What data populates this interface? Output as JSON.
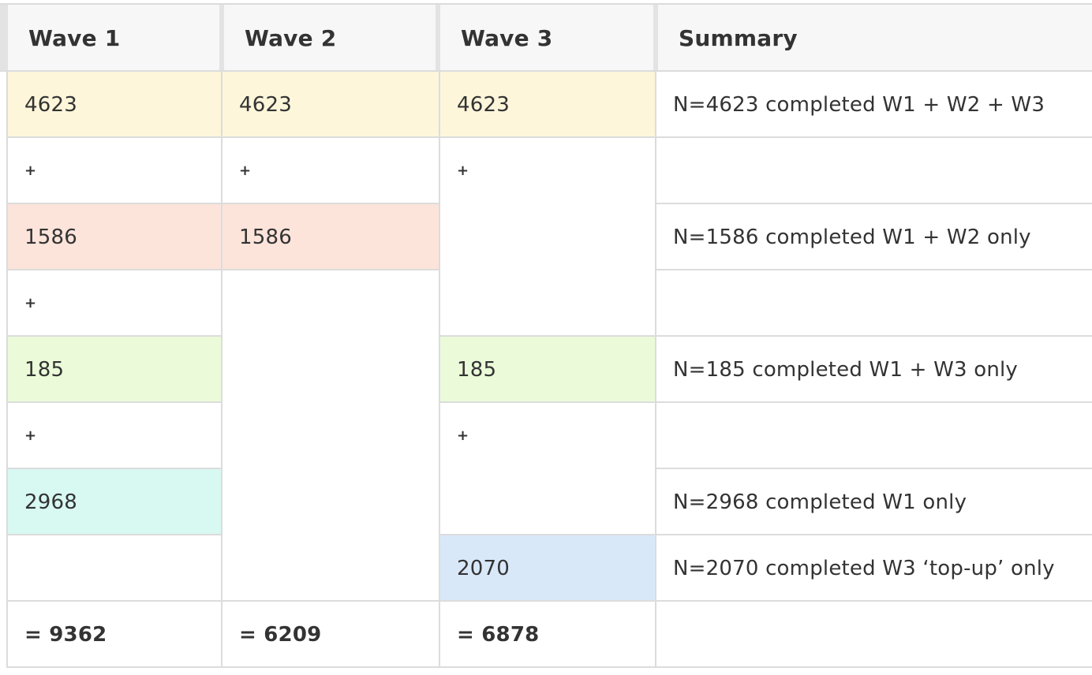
{
  "headers": [
    "Wave 1",
    "Wave 2",
    "Wave 3",
    "Summary"
  ],
  "rows": {
    "r1": {
      "w1": "4623",
      "w2": "4623",
      "w3": "4623",
      "summary": "N=4623 completed W1 + W2 + W3"
    },
    "r2": {
      "w1": "+",
      "w2": "+",
      "w3": "+"
    },
    "r3": {
      "w1": "1586",
      "w2": "1586",
      "summary": "N=1586 completed W1 + W2 only"
    },
    "r4": {
      "w1": "+"
    },
    "r5": {
      "w1": "185",
      "w3": "185",
      "summary": "N=185 completed W1 + W3 only"
    },
    "r6": {
      "w1": "+",
      "w3": "+"
    },
    "r7": {
      "w1": "2968",
      "summary": "N=2968 completed W1 only"
    },
    "r8": {
      "w3": "2070",
      "summary": "N=2070 completed W3 ‘top-up’ only"
    },
    "r9": {
      "w1": "= 9362",
      "w2": "= 6209",
      "w3": "= 6878"
    }
  },
  "colors": {
    "all_three": "#fdf6da",
    "w1_w2": "#fce4db",
    "w1_w3": "#ebfbd9",
    "w1_only": "#d8f8f2",
    "w3_topup": "#d9e8f9"
  }
}
